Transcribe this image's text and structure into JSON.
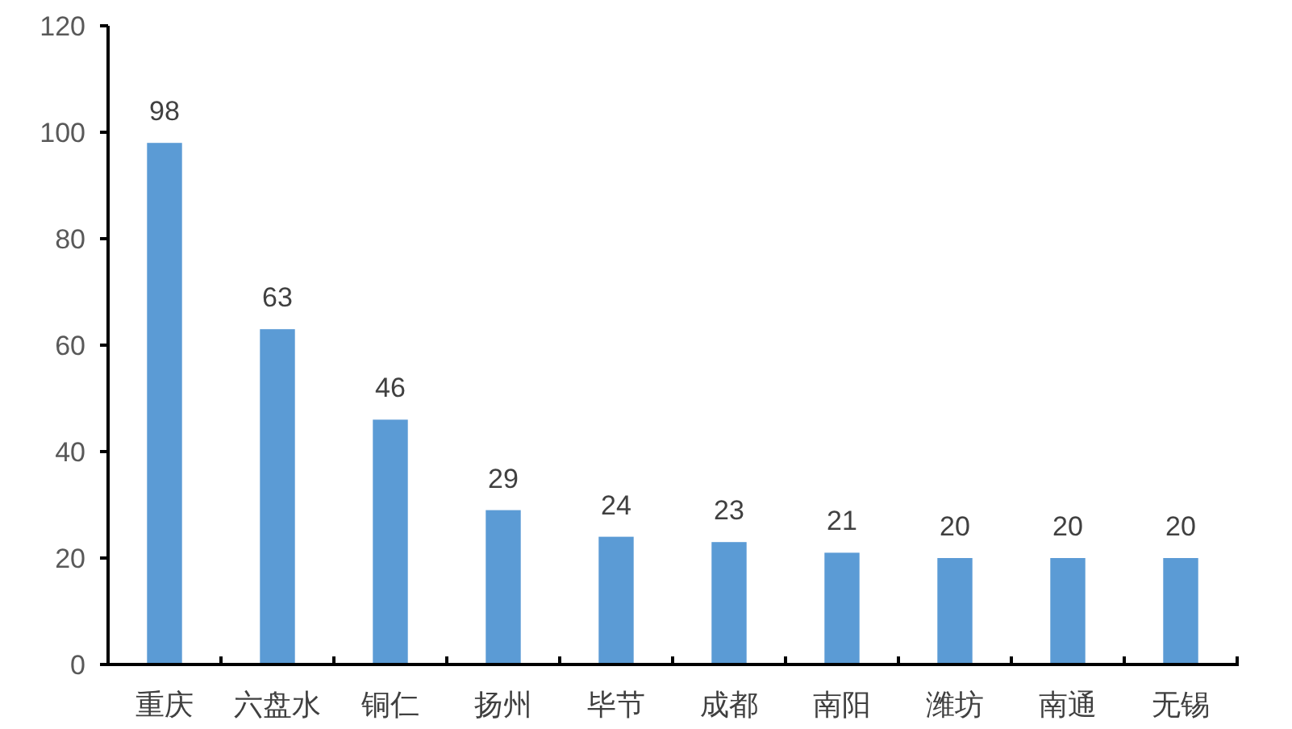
{
  "chart_data": {
    "type": "bar",
    "categories": [
      "重庆",
      "六盘水",
      "铜仁",
      "扬州",
      "毕节",
      "成都",
      "南阳",
      "潍坊",
      "南通",
      "无锡"
    ],
    "values": [
      98,
      63,
      46,
      29,
      24,
      23,
      21,
      20,
      20,
      20
    ],
    "color": "#5b9bd5",
    "ylim": [
      0,
      120
    ],
    "yticks": [
      0,
      20,
      40,
      60,
      80,
      100,
      120
    ],
    "data_labels": true
  }
}
